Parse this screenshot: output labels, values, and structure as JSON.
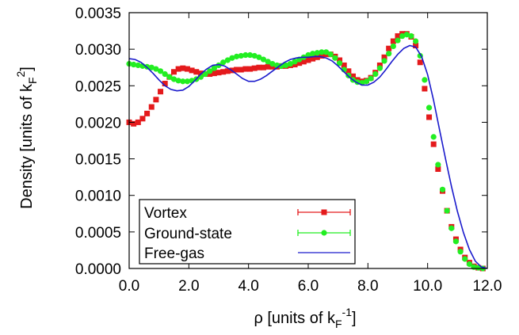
{
  "chart_data": {
    "type": "scatter",
    "xlabel": {
      "main": "ρ [units of k",
      "sub": "F",
      "sup": "-1",
      "close": "]"
    },
    "ylabel": {
      "main": "Density [units of k",
      "sub": "F",
      "sup": "2",
      "close": "]"
    },
    "xlim": [
      0.0,
      12.0
    ],
    "ylim": [
      0.0,
      0.0035
    ],
    "x_ticks": [
      0,
      2,
      4,
      6,
      8,
      10,
      12
    ],
    "x_tick_labels": [
      "0.0",
      "2.0",
      "4.0",
      "6.0",
      "8.0",
      "10.0",
      "12.0"
    ],
    "y_ticks": [
      0,
      0.0005,
      0.001,
      0.0015,
      0.002,
      0.0025,
      0.003,
      0.0035
    ],
    "y_tick_labels": [
      "0.0000",
      "0.0005",
      "0.0010",
      "0.0015",
      "0.0020",
      "0.0025",
      "0.0030",
      "0.0035"
    ],
    "grid": false,
    "legend_position": "bottom-left",
    "series": [
      {
        "name": "Vortex",
        "color": "#e41a1c",
        "marker": "square",
        "x": [
          0.0,
          0.15,
          0.3,
          0.45,
          0.6,
          0.75,
          0.9,
          1.05,
          1.2,
          1.35,
          1.5,
          1.65,
          1.8,
          1.95,
          2.1,
          2.25,
          2.4,
          2.55,
          2.7,
          2.85,
          3.0,
          3.15,
          3.3,
          3.45,
          3.6,
          3.75,
          3.9,
          4.05,
          4.2,
          4.35,
          4.5,
          4.65,
          4.8,
          4.95,
          5.1,
          5.25,
          5.4,
          5.55,
          5.7,
          5.85,
          6.0,
          6.15,
          6.3,
          6.45,
          6.6,
          6.75,
          6.9,
          7.05,
          7.2,
          7.35,
          7.5,
          7.65,
          7.8,
          7.95,
          8.1,
          8.25,
          8.4,
          8.55,
          8.7,
          8.85,
          9.0,
          9.15,
          9.3,
          9.45,
          9.6,
          9.75,
          9.9,
          10.05,
          10.2,
          10.35,
          10.5,
          10.65,
          10.8,
          10.95,
          11.1,
          11.25,
          11.4,
          11.55,
          11.7,
          11.85
        ],
        "y": [
          0.002,
          0.00198,
          0.002,
          0.00205,
          0.00212,
          0.00221,
          0.00231,
          0.00242,
          0.00253,
          0.00262,
          0.00269,
          0.00273,
          0.00274,
          0.00273,
          0.00271,
          0.00269,
          0.00267,
          0.00266,
          0.00266,
          0.00267,
          0.00268,
          0.00269,
          0.0027,
          0.00271,
          0.00272,
          0.00272,
          0.00273,
          0.00273,
          0.00274,
          0.00275,
          0.00275,
          0.00276,
          0.00276,
          0.00276,
          0.00277,
          0.00277,
          0.00278,
          0.00279,
          0.00281,
          0.00283,
          0.00285,
          0.00287,
          0.00289,
          0.00291,
          0.00293,
          0.00293,
          0.0029,
          0.00285,
          0.00278,
          0.0027,
          0.00263,
          0.00258,
          0.00256,
          0.00257,
          0.00261,
          0.00268,
          0.00278,
          0.00289,
          0.00301,
          0.00311,
          0.00318,
          0.00321,
          0.00321,
          0.00317,
          0.00305,
          0.00282,
          0.00246,
          0.00207,
          0.0017,
          0.00136,
          0.00106,
          0.00079,
          0.00057,
          0.0004,
          0.00026,
          0.00015,
          8e-05,
          3e-05,
          1e-05,
          0.0
        ]
      },
      {
        "name": "Ground-state",
        "color": "#22ee22",
        "marker": "circle",
        "x": [
          0.0,
          0.15,
          0.3,
          0.45,
          0.6,
          0.75,
          0.9,
          1.05,
          1.2,
          1.35,
          1.5,
          1.65,
          1.8,
          1.95,
          2.1,
          2.25,
          2.4,
          2.55,
          2.7,
          2.85,
          3.0,
          3.15,
          3.3,
          3.45,
          3.6,
          3.75,
          3.9,
          4.05,
          4.2,
          4.35,
          4.5,
          4.65,
          4.8,
          4.95,
          5.1,
          5.25,
          5.4,
          5.55,
          5.7,
          5.85,
          6.0,
          6.15,
          6.3,
          6.45,
          6.6,
          6.75,
          6.9,
          7.05,
          7.2,
          7.35,
          7.5,
          7.65,
          7.8,
          7.95,
          8.1,
          8.25,
          8.4,
          8.55,
          8.7,
          8.85,
          9.0,
          9.15,
          9.3,
          9.45,
          9.6,
          9.75,
          9.9,
          10.05,
          10.2,
          10.35,
          10.5,
          10.65,
          10.8,
          10.95,
          11.1,
          11.25,
          11.4,
          11.55,
          11.7,
          11.85
        ],
        "y": [
          0.0028,
          0.00279,
          0.00278,
          0.00277,
          0.00276,
          0.00275,
          0.00273,
          0.0027,
          0.00266,
          0.00262,
          0.00259,
          0.00257,
          0.00256,
          0.00256,
          0.00257,
          0.00259,
          0.00262,
          0.00266,
          0.0027,
          0.00274,
          0.00278,
          0.00282,
          0.00285,
          0.00288,
          0.0029,
          0.00291,
          0.00292,
          0.00292,
          0.00291,
          0.00289,
          0.00286,
          0.00283,
          0.0028,
          0.00278,
          0.00277,
          0.00278,
          0.0028,
          0.00283,
          0.00286,
          0.00289,
          0.00292,
          0.00294,
          0.00295,
          0.00296,
          0.00296,
          0.00293,
          0.00288,
          0.00281,
          0.00272,
          0.00264,
          0.00258,
          0.00255,
          0.00254,
          0.00256,
          0.0026,
          0.00266,
          0.00274,
          0.00284,
          0.00294,
          0.00304,
          0.00312,
          0.00318,
          0.0032,
          0.00318,
          0.00311,
          0.00291,
          0.00258,
          0.0022,
          0.0018,
          0.00142,
          0.00108,
          0.00079,
          0.00055,
          0.00037,
          0.00023,
          0.00013,
          6e-05,
          2e-05,
          1e-05,
          0.0
        ]
      },
      {
        "name": "Free-gas",
        "color": "#1a1acc",
        "marker": "line",
        "x": [
          0.0,
          0.2,
          0.4,
          0.6,
          0.8,
          1.0,
          1.2,
          1.4,
          1.6,
          1.8,
          2.0,
          2.2,
          2.4,
          2.6,
          2.8,
          3.0,
          3.2,
          3.4,
          3.6,
          3.8,
          4.0,
          4.2,
          4.4,
          4.6,
          4.8,
          5.0,
          5.2,
          5.4,
          5.6,
          5.8,
          6.0,
          6.2,
          6.4,
          6.6,
          6.8,
          7.0,
          7.2,
          7.4,
          7.6,
          7.8,
          8.0,
          8.2,
          8.4,
          8.6,
          8.8,
          9.0,
          9.2,
          9.4,
          9.6,
          9.8,
          10.0,
          10.2,
          10.4,
          10.6,
          10.8,
          11.0,
          11.2,
          11.4,
          11.6,
          11.8,
          12.0
        ],
        "y": [
          0.00287,
          0.00286,
          0.00282,
          0.00275,
          0.00267,
          0.00258,
          0.0025,
          0.00245,
          0.00243,
          0.00244,
          0.00249,
          0.00257,
          0.00266,
          0.00273,
          0.00278,
          0.00279,
          0.00277,
          0.00272,
          0.00266,
          0.0026,
          0.00256,
          0.00256,
          0.00259,
          0.00264,
          0.0027,
          0.00276,
          0.00282,
          0.00286,
          0.00288,
          0.00289,
          0.00289,
          0.0029,
          0.0029,
          0.00288,
          0.00284,
          0.00277,
          0.00269,
          0.00261,
          0.00255,
          0.00251,
          0.00251,
          0.00255,
          0.00262,
          0.00272,
          0.00283,
          0.00293,
          0.00301,
          0.00305,
          0.00303,
          0.0029,
          0.00265,
          0.0023,
          0.0019,
          0.0015,
          0.00112,
          0.00078,
          0.00049,
          0.00026,
          0.0001,
          2e-05,
          0.0
        ]
      }
    ]
  }
}
